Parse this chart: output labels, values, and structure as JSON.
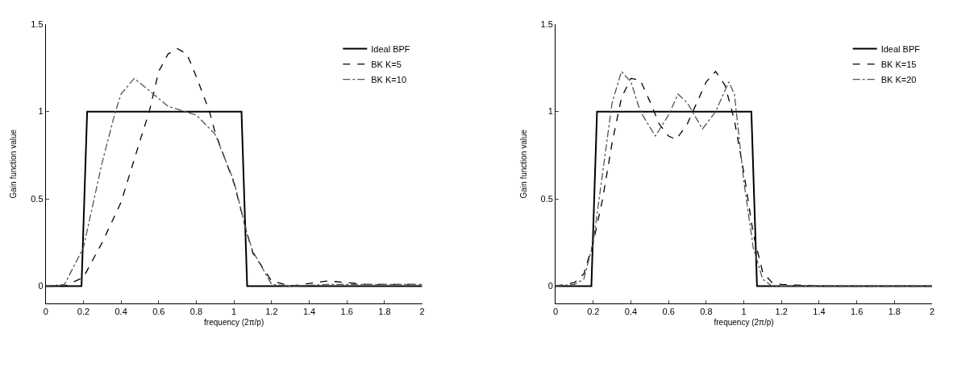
{
  "chart_data": [
    {
      "type": "line",
      "xlabel": "frequency (2π/p)",
      "ylabel": "Gain function value",
      "xlim": [
        0,
        2
      ],
      "ylim": [
        -0.1,
        1.5
      ],
      "xticks": [
        0,
        0.2,
        0.4,
        0.6,
        0.8,
        1,
        1.2,
        1.4,
        1.6,
        1.8,
        2
      ],
      "yticks": [
        0,
        0.5,
        1,
        1.5
      ],
      "legend": "top right",
      "series": [
        {
          "name": "Ideal BPF",
          "color": "#000000",
          "line_style": "solid",
          "x": [
            0,
            0.19,
            0.22,
            1.04,
            1.07,
            2
          ],
          "values": [
            0,
            0,
            1,
            1,
            0,
            0
          ]
        },
        {
          "name": "BK K=5",
          "color": "#000000",
          "line_style": "dashed",
          "x": [
            0,
            0.1,
            0.2,
            0.3,
            0.4,
            0.5,
            0.55,
            0.6,
            0.65,
            0.7,
            0.75,
            0.8,
            0.87,
            0.9,
            1.0,
            1.07,
            1.1,
            1.2,
            1.3,
            1.5,
            1.7,
            2.0
          ],
          "values": [
            0,
            0,
            0.05,
            0.25,
            0.48,
            0.83,
            1.0,
            1.23,
            1.33,
            1.36,
            1.33,
            1.2,
            1.0,
            0.88,
            0.59,
            0.3,
            0.19,
            0.03,
            0,
            0.03,
            0.01,
            0.01
          ]
        },
        {
          "name": "BK K=10",
          "color": "#555555",
          "line_style": "dashdot",
          "x": [
            0,
            0.1,
            0.2,
            0.3,
            0.37,
            0.4,
            0.47,
            0.55,
            0.65,
            0.8,
            0.9,
            1.0,
            1.07,
            1.1,
            1.2,
            1.3,
            1.5,
            2.0
          ],
          "values": [
            0,
            0.01,
            0.22,
            0.71,
            1.0,
            1.1,
            1.19,
            1.12,
            1.03,
            0.98,
            0.87,
            0.6,
            0.3,
            0.2,
            0.01,
            0,
            0.01,
            0.01
          ]
        }
      ]
    },
    {
      "type": "line",
      "xlabel": "frequency (2π/p)",
      "ylabel": "Gain function value",
      "xlim": [
        0,
        2
      ],
      "ylim": [
        -0.1,
        1.5
      ],
      "xticks": [
        0,
        0.2,
        0.4,
        0.6,
        0.8,
        1,
        1.2,
        1.4,
        1.6,
        1.8,
        2
      ],
      "yticks": [
        0,
        0.5,
        1,
        1.5
      ],
      "legend": "top right",
      "series": [
        {
          "name": "Ideal BPF",
          "color": "#000000",
          "line_style": "solid",
          "x": [
            0,
            0.19,
            0.22,
            1.04,
            1.07,
            2
          ],
          "values": [
            0,
            0,
            1,
            1,
            0,
            0
          ]
        },
        {
          "name": "BK K=15",
          "color": "#000000",
          "line_style": "dashed",
          "x": [
            0,
            0.1,
            0.15,
            0.2,
            0.25,
            0.3,
            0.35,
            0.4,
            0.45,
            0.5,
            0.55,
            0.6,
            0.64,
            0.7,
            0.75,
            0.8,
            0.85,
            0.9,
            0.95,
            1.0,
            1.05,
            1.1,
            1.15,
            1.2,
            1.4,
            2
          ],
          "values": [
            0,
            0.02,
            0.07,
            0.25,
            0.5,
            0.82,
            1.08,
            1.19,
            1.18,
            1.06,
            0.93,
            0.86,
            0.84,
            0.93,
            1.05,
            1.17,
            1.23,
            1.15,
            0.95,
            0.65,
            0.3,
            0.08,
            0.02,
            0.01,
            0,
            0
          ]
        },
        {
          "name": "BK K=20",
          "color": "#555555",
          "line_style": "dashdot",
          "x": [
            0,
            0.1,
            0.15,
            0.2,
            0.25,
            0.3,
            0.35,
            0.4,
            0.45,
            0.53,
            0.6,
            0.65,
            0.7,
            0.78,
            0.85,
            0.92,
            0.95,
            1.0,
            1.05,
            1.1,
            1.15,
            2
          ],
          "values": [
            0,
            0.01,
            0.04,
            0.25,
            0.65,
            1.05,
            1.23,
            1.17,
            1.0,
            0.86,
            0.98,
            1.1,
            1.05,
            0.9,
            1.0,
            1.17,
            1.1,
            0.6,
            0.22,
            0.04,
            0,
            0
          ]
        }
      ]
    }
  ]
}
